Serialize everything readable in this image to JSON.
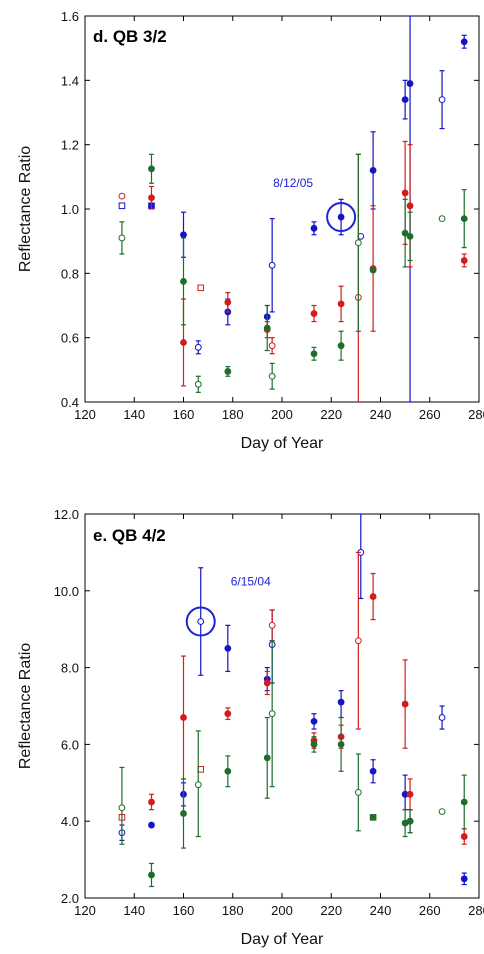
{
  "chart_data": [
    {
      "type": "scatter",
      "title": "d. QB 3/2",
      "xlabel": "Day of Year",
      "ylabel": "Reflectance Ratio",
      "xlim": [
        120,
        280
      ],
      "ylim": [
        0.4,
        1.6
      ],
      "x_ticks": [
        "120",
        "140",
        "160",
        "180",
        "200",
        "220",
        "240",
        "260",
        "280"
      ],
      "y_ticks": [
        "0.4",
        "0.6",
        "0.8",
        "1.0",
        "1.2",
        "1.4",
        "1.6"
      ],
      "grid": false,
      "colors": {
        "blue": "#1414c8",
        "red": "#d41c1c",
        "green": "#1e6e2a"
      },
      "annotation": {
        "text": "8/12/05",
        "x": 224,
        "y": 0.975
      },
      "series": [
        {
          "color": "blue",
          "points": [
            {
              "x": 135,
              "y": 1.01,
              "marker": "open-square"
            },
            {
              "x": 147,
              "y": 1.01,
              "marker": "filled-square"
            },
            {
              "x": 160,
              "y": 0.92,
              "yerr": [
                0.85,
                0.99
              ],
              "marker": "filled-circle"
            },
            {
              "x": 166,
              "y": 0.57,
              "yerr": [
                0.55,
                0.59
              ],
              "marker": "open-circle"
            },
            {
              "x": 178,
              "y": 0.68,
              "yerr": [
                0.64,
                0.72
              ],
              "marker": "filled-circle"
            },
            {
              "x": 194,
              "y": 0.665,
              "yerr": [
                0.63,
                0.7
              ],
              "marker": "filled-circle"
            },
            {
              "x": 196,
              "y": 0.825,
              "yerr": [
                0.68,
                0.97
              ],
              "marker": "open-circle"
            },
            {
              "x": 213,
              "y": 0.94,
              "yerr": [
                0.92,
                0.96
              ],
              "marker": "filled-circle"
            },
            {
              "x": 224,
              "y": 0.975,
              "yerr": [
                0.92,
                1.03
              ],
              "marker": "filled-circle"
            },
            {
              "x": 232,
              "y": 0.915,
              "marker": "open-circle"
            },
            {
              "x": 237,
              "y": 1.12,
              "yerr": [
                1.0,
                1.24
              ],
              "marker": "filled-circle"
            },
            {
              "x": 250,
              "y": 1.34,
              "yerr": [
                1.28,
                1.4
              ],
              "marker": "filled-circle"
            },
            {
              "x": 252,
              "y": 1.39,
              "yerr": [
                0.4,
                1.6
              ],
              "marker": "filled-circle"
            },
            {
              "x": 265,
              "y": 1.34,
              "yerr": [
                1.25,
                1.43
              ],
              "marker": "open-circle"
            },
            {
              "x": 274,
              "y": 1.52,
              "yerr": [
                1.5,
                1.54
              ],
              "marker": "filled-circle"
            }
          ]
        },
        {
          "color": "red",
          "points": [
            {
              "x": 135,
              "y": 1.04,
              "marker": "open-circle"
            },
            {
              "x": 147,
              "y": 1.035,
              "yerr": [
                1.0,
                1.07
              ],
              "marker": "filled-circle"
            },
            {
              "x": 160,
              "y": 0.585,
              "yerr": [
                0.45,
                0.72
              ],
              "marker": "filled-circle"
            },
            {
              "x": 167,
              "y": 0.755,
              "marker": "open-square"
            },
            {
              "x": 178,
              "y": 0.71,
              "yerr": [
                0.68,
                0.74
              ],
              "marker": "filled-circle"
            },
            {
              "x": 194,
              "y": 0.625,
              "yerr": [
                0.6,
                0.65
              ],
              "marker": "filled-circle"
            },
            {
              "x": 196,
              "y": 0.575,
              "yerr": [
                0.55,
                0.6
              ],
              "marker": "open-circle"
            },
            {
              "x": 213,
              "y": 0.675,
              "yerr": [
                0.65,
                0.7
              ],
              "marker": "filled-circle"
            },
            {
              "x": 224,
              "y": 0.705,
              "yerr": [
                0.65,
                0.76
              ],
              "marker": "filled-circle"
            },
            {
              "x": 231,
              "y": 0.725,
              "yerr": [
                0.25,
                1.17
              ],
              "marker": "open-circle"
            },
            {
              "x": 237,
              "y": 0.815,
              "yerr": [
                0.62,
                1.01
              ],
              "marker": "filled-circle"
            },
            {
              "x": 250,
              "y": 1.05,
              "yerr": [
                0.89,
                1.21
              ],
              "marker": "filled-circle"
            },
            {
              "x": 252,
              "y": 1.01,
              "yerr": [
                0.82,
                1.2
              ],
              "marker": "filled-circle"
            },
            {
              "x": 274,
              "y": 0.84,
              "yerr": [
                0.82,
                0.86
              ],
              "marker": "filled-circle"
            }
          ]
        },
        {
          "color": "green",
          "points": [
            {
              "x": 135,
              "y": 0.91,
              "yerr": [
                0.86,
                0.96
              ],
              "marker": "open-circle"
            },
            {
              "x": 147,
              "y": 1.125,
              "yerr": [
                1.08,
                1.17
              ],
              "marker": "filled-circle"
            },
            {
              "x": 160,
              "y": 0.775,
              "yerr": [
                0.64,
                0.91
              ],
              "marker": "filled-circle"
            },
            {
              "x": 166,
              "y": 0.455,
              "yerr": [
                0.43,
                0.48
              ],
              "marker": "open-circle"
            },
            {
              "x": 178,
              "y": 0.495,
              "yerr": [
                0.48,
                0.51
              ],
              "marker": "filled-circle"
            },
            {
              "x": 194,
              "y": 0.63,
              "yerr": [
                0.56,
                0.7
              ],
              "marker": "filled-circle"
            },
            {
              "x": 196,
              "y": 0.48,
              "yerr": [
                0.44,
                0.52
              ],
              "marker": "open-circle"
            },
            {
              "x": 213,
              "y": 0.55,
              "yerr": [
                0.53,
                0.57
              ],
              "marker": "filled-circle"
            },
            {
              "x": 224,
              "y": 0.575,
              "yerr": [
                0.53,
                0.62
              ],
              "marker": "filled-circle"
            },
            {
              "x": 231,
              "y": 0.895,
              "yerr": [
                0.62,
                1.17
              ],
              "marker": "open-circle"
            },
            {
              "x": 237,
              "y": 0.81,
              "marker": "filled-circle"
            },
            {
              "x": 250,
              "y": 0.925,
              "yerr": [
                0.82,
                1.03
              ],
              "marker": "filled-circle"
            },
            {
              "x": 252,
              "y": 0.915,
              "yerr": [
                0.84,
                0.99
              ],
              "marker": "filled-circle"
            },
            {
              "x": 265,
              "y": 0.97,
              "marker": "open-circle"
            },
            {
              "x": 274,
              "y": 0.97,
              "yerr": [
                0.88,
                1.06
              ],
              "marker": "filled-circle"
            }
          ]
        }
      ]
    },
    {
      "type": "scatter",
      "title": "e. QB 4/2",
      "xlabel": "Day of Year",
      "ylabel": "Reflectance Ratio",
      "xlim": [
        120,
        280
      ],
      "ylim": [
        2.0,
        12.0
      ],
      "x_ticks": [
        "120",
        "140",
        "160",
        "180",
        "200",
        "220",
        "240",
        "260",
        "280"
      ],
      "y_ticks": [
        "2.0",
        "4.0",
        "6.0",
        "8.0",
        "10.0",
        "12.0"
      ],
      "grid": false,
      "colors": {
        "blue": "#1414c8",
        "red": "#d41c1c",
        "green": "#1e6e2a"
      },
      "annotation": {
        "text": "6/15/04",
        "x": 167,
        "y": 9.2
      },
      "series": [
        {
          "color": "blue",
          "points": [
            {
              "x": 135,
              "y": 3.7,
              "yerr": [
                3.5,
                3.9
              ],
              "marker": "open-circle"
            },
            {
              "x": 147,
              "y": 3.9,
              "marker": "filled-circle"
            },
            {
              "x": 160,
              "y": 4.7,
              "yerr": [
                4.4,
                5.0
              ],
              "marker": "filled-circle"
            },
            {
              "x": 167,
              "y": 9.2,
              "yerr": [
                7.8,
                10.6
              ],
              "marker": "open-circle"
            },
            {
              "x": 178,
              "y": 8.5,
              "yerr": [
                7.9,
                9.1
              ],
              "marker": "filled-circle"
            },
            {
              "x": 194,
              "y": 7.7,
              "yerr": [
                7.4,
                8.0
              ],
              "marker": "filled-circle"
            },
            {
              "x": 196,
              "y": 8.6,
              "yerr": [
                7.6,
                9.5
              ],
              "marker": "open-circle"
            },
            {
              "x": 213,
              "y": 6.6,
              "yerr": [
                6.4,
                6.8
              ],
              "marker": "filled-circle"
            },
            {
              "x": 224,
              "y": 7.1,
              "yerr": [
                6.7,
                7.4
              ],
              "marker": "filled-circle"
            },
            {
              "x": 232,
              "y": 11.0,
              "yerr": [
                9.8,
                12.0
              ],
              "marker": "open-circle"
            },
            {
              "x": 237,
              "y": 5.3,
              "yerr": [
                5.0,
                5.6
              ],
              "marker": "filled-circle"
            },
            {
              "x": 250,
              "y": 4.7,
              "yerr": [
                4.3,
                5.2
              ],
              "marker": "filled-circle"
            },
            {
              "x": 252,
              "y": 4.0,
              "yerr": [
                3.7,
                4.3
              ],
              "marker": "filled-circle"
            },
            {
              "x": 265,
              "y": 6.7,
              "yerr": [
                6.4,
                7.0
              ],
              "marker": "open-circle"
            },
            {
              "x": 274,
              "y": 2.5,
              "yerr": [
                2.35,
                2.65
              ],
              "marker": "filled-circle"
            }
          ]
        },
        {
          "color": "red",
          "points": [
            {
              "x": 135,
              "y": 4.1,
              "marker": "open-square"
            },
            {
              "x": 147,
              "y": 4.5,
              "yerr": [
                4.3,
                4.7
              ],
              "marker": "filled-circle"
            },
            {
              "x": 160,
              "y": 6.7,
              "yerr": [
                5.1,
                8.3
              ],
              "marker": "filled-circle"
            },
            {
              "x": 167,
              "y": 5.35,
              "marker": "open-square"
            },
            {
              "x": 178,
              "y": 6.8,
              "yerr": [
                6.65,
                6.95
              ],
              "marker": "filled-circle"
            },
            {
              "x": 194,
              "y": 7.6,
              "yerr": [
                7.3,
                7.9
              ],
              "marker": "filled-circle"
            },
            {
              "x": 196,
              "y": 9.1,
              "yerr": [
                8.7,
                9.5
              ],
              "marker": "open-circle"
            },
            {
              "x": 213,
              "y": 6.1,
              "yerr": [
                5.9,
                6.3
              ],
              "marker": "filled-circle"
            },
            {
              "x": 224,
              "y": 6.2,
              "yerr": [
                5.9,
                6.5
              ],
              "marker": "filled-circle"
            },
            {
              "x": 231,
              "y": 8.7,
              "yerr": [
                6.4,
                11.0
              ],
              "marker": "open-circle"
            },
            {
              "x": 237,
              "y": 9.85,
              "yerr": [
                9.25,
                10.45
              ],
              "marker": "filled-circle"
            },
            {
              "x": 250,
              "y": 7.05,
              "yerr": [
                5.9,
                8.2
              ],
              "marker": "filled-circle"
            },
            {
              "x": 252,
              "y": 4.7,
              "yerr": [
                4.3,
                5.1
              ],
              "marker": "filled-circle"
            },
            {
              "x": 274,
              "y": 3.6,
              "yerr": [
                3.4,
                3.8
              ],
              "marker": "filled-circle"
            }
          ]
        },
        {
          "color": "green",
          "points": [
            {
              "x": 135,
              "y": 4.35,
              "yerr": [
                3.4,
                5.4
              ],
              "marker": "open-circle"
            },
            {
              "x": 147,
              "y": 2.6,
              "yerr": [
                2.3,
                2.9
              ],
              "marker": "filled-circle"
            },
            {
              "x": 160,
              "y": 4.2,
              "yerr": [
                3.3,
                5.1
              ],
              "marker": "filled-circle"
            },
            {
              "x": 166,
              "y": 4.95,
              "yerr": [
                3.6,
                6.35
              ],
              "marker": "open-circle"
            },
            {
              "x": 178,
              "y": 5.3,
              "yerr": [
                4.9,
                5.7
              ],
              "marker": "filled-circle"
            },
            {
              "x": 194,
              "y": 5.65,
              "yerr": [
                4.6,
                6.7
              ],
              "marker": "filled-circle"
            },
            {
              "x": 196,
              "y": 6.8,
              "yerr": [
                4.9,
                8.7
              ],
              "marker": "open-circle"
            },
            {
              "x": 213,
              "y": 6.0,
              "yerr": [
                5.8,
                6.2
              ],
              "marker": "filled-circle"
            },
            {
              "x": 224,
              "y": 6.0,
              "yerr": [
                5.3,
                6.7
              ],
              "marker": "filled-circle"
            },
            {
              "x": 231,
              "y": 4.75,
              "yerr": [
                3.75,
                5.75
              ],
              "marker": "open-circle"
            },
            {
              "x": 237,
              "y": 4.1,
              "marker": "filled-square"
            },
            {
              "x": 250,
              "y": 3.95,
              "yerr": [
                3.6,
                4.3
              ],
              "marker": "filled-circle"
            },
            {
              "x": 252,
              "y": 4.0,
              "yerr": [
                3.7,
                4.3
              ],
              "marker": "filled-circle"
            },
            {
              "x": 265,
              "y": 4.25,
              "marker": "open-circle"
            },
            {
              "x": 274,
              "y": 4.5,
              "yerr": [
                3.8,
                5.2
              ],
              "marker": "filled-circle"
            }
          ]
        }
      ]
    }
  ]
}
